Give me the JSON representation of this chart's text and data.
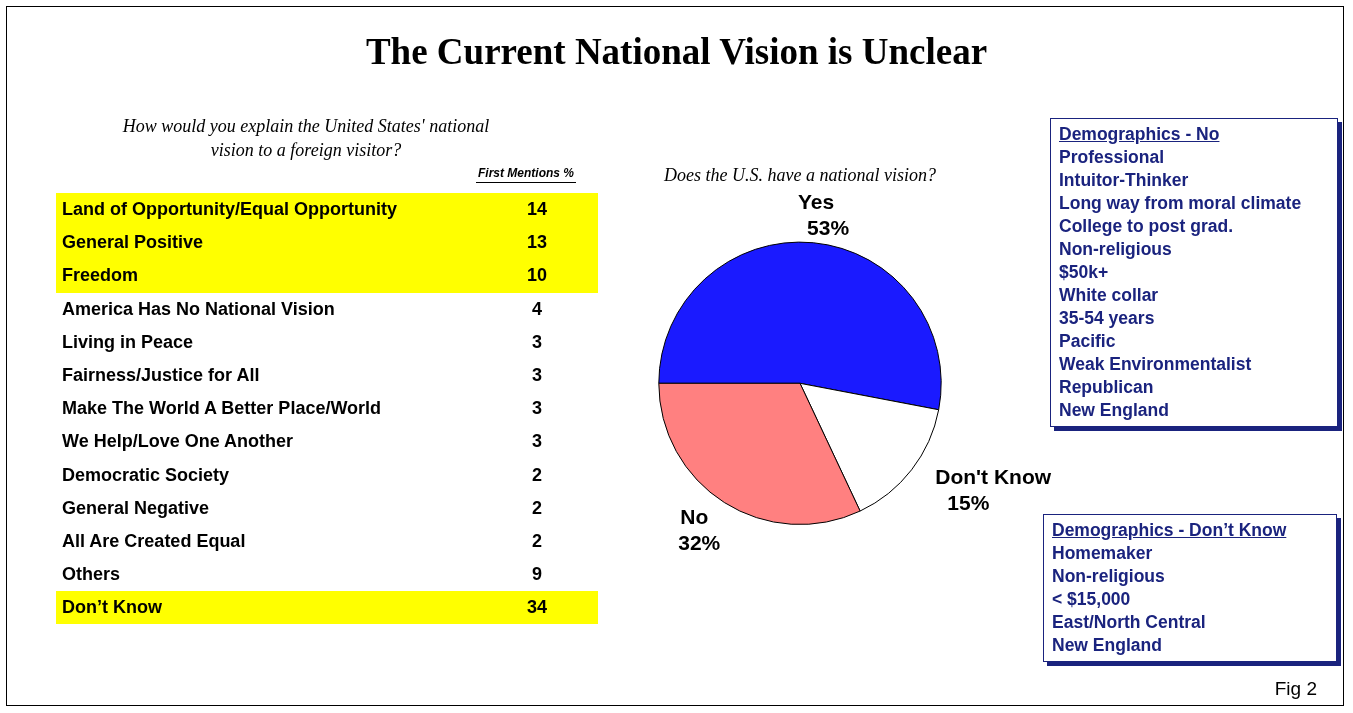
{
  "chart_data": [
    {
      "type": "other",
      "title": "The Current National Vision is Unclear",
      "annotations": [
        "Fig 2"
      ]
    },
    {
      "type": "other",
      "title": "How would you explain the United States' national vision to a foreign visitor?",
      "ylabel": "First Mentions %",
      "categories": [
        "Land of Opportunity/Equal Opportunity",
        "General Positive",
        "Freedom",
        "America Has No National Vision",
        "Living in Peace",
        "Fairness/Justice for All",
        "Make The World A Better Place/World",
        "We Help/Love One Another",
        "Democratic Society",
        "General Negative",
        "All Are Created Equal",
        "Others",
        "Don’t Know"
      ],
      "values": [
        14,
        13,
        10,
        4,
        3,
        3,
        3,
        3,
        2,
        2,
        2,
        9,
        34
      ],
      "colors": [
        "#ffff00",
        "#ffff00",
        "#ffff00",
        "#ffffff",
        "#ffffff",
        "#ffffff",
        "#ffffff",
        "#ffffff",
        "#ffffff",
        "#ffffff",
        "#ffffff",
        "#ffffff",
        "#ffff00"
      ],
      "data_labels": true
    },
    {
      "type": "pie",
      "title": "Does the U.S. have a national vision?",
      "categories": [
        "Yes",
        "Don't Know",
        "No"
      ],
      "values": [
        53,
        15,
        32
      ],
      "colors": [
        "#1a1aff",
        "#ffffff",
        "#ff8080"
      ],
      "value_labels": [
        "53%",
        "15%",
        "32%"
      ],
      "legend": false
    },
    {
      "type": "other",
      "title": "Demographics - No",
      "annotations": [
        "Professional",
        "Intuitor-Thinker",
        "Long way from moral climate",
        "College to post grad.",
        "Non-religious",
        "$50k+",
        "White collar",
        "35-54 years",
        "Pacific",
        "Weak Environmentalist",
        "Republican",
        "New England"
      ]
    },
    {
      "type": "other",
      "title": "Demographics - Don’t Know",
      "annotations": [
        "Homemaker",
        "Non-religious",
        "< $15,000",
        "East/North Central",
        "New England"
      ]
    }
  ]
}
